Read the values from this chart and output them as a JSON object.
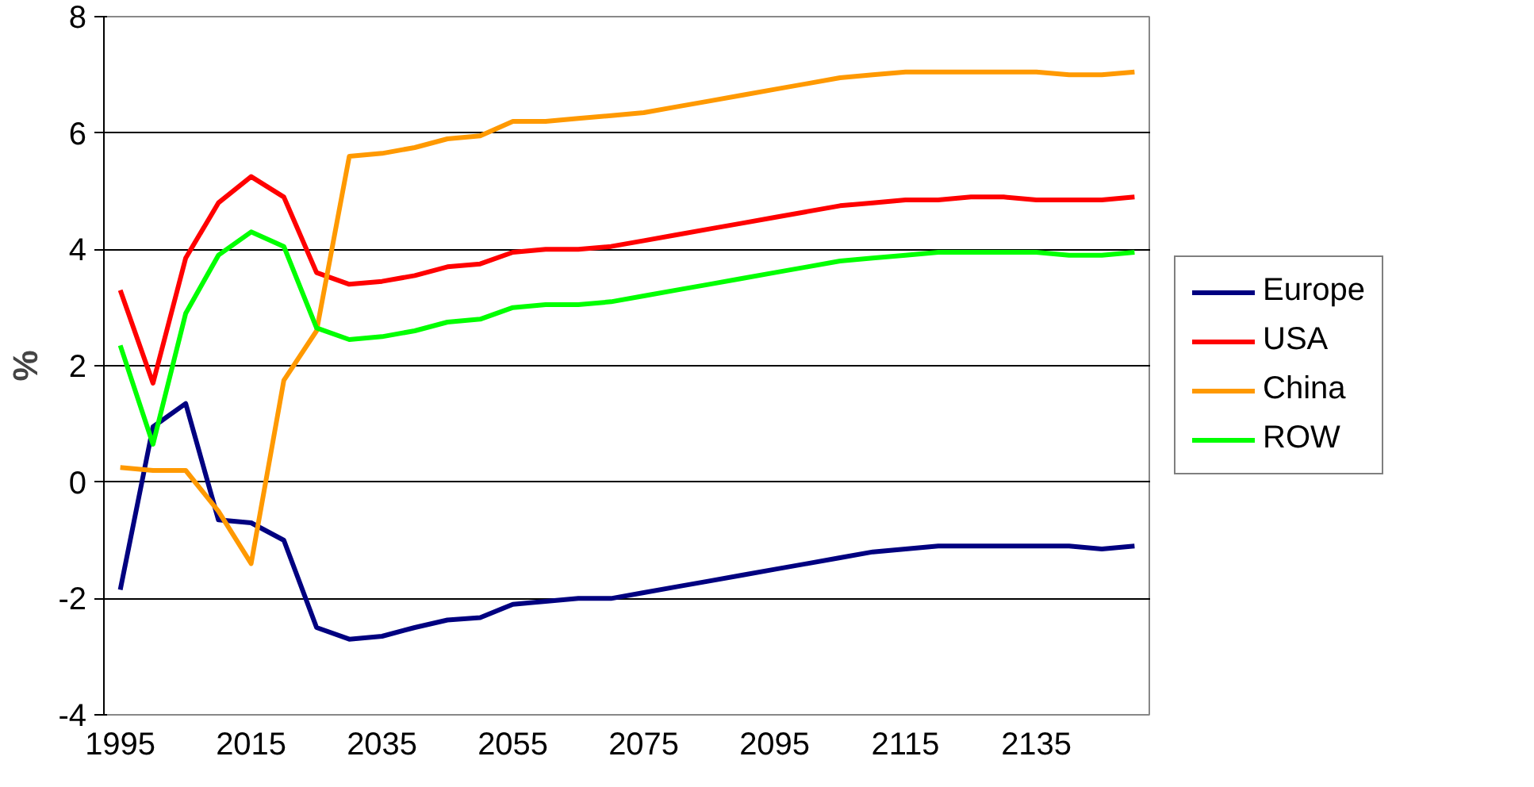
{
  "chart_data": {
    "type": "line",
    "ylabel": "%",
    "ylim": [
      -4,
      8
    ],
    "yticks": [
      -4,
      -2,
      0,
      2,
      4,
      6,
      8
    ],
    "grid": "y",
    "legend": "right",
    "categories": [
      "1995",
      null,
      null,
      null,
      "2015",
      null,
      null,
      null,
      "2035",
      null,
      null,
      null,
      "2055",
      null,
      null,
      null,
      "2075",
      null,
      null,
      null,
      "2095",
      null,
      null,
      null,
      "2115",
      null,
      null,
      null,
      "2135",
      null,
      null,
      null
    ],
    "series": [
      {
        "name": "Europe",
        "color": "#000080",
        "values": [
          -1.85,
          0.95,
          1.35,
          -0.65,
          -0.7,
          -1.0,
          -2.5,
          -2.7,
          -2.65,
          -2.5,
          -2.37,
          -2.33,
          -2.1,
          -2.05,
          -2.0,
          -2.0,
          -1.9,
          -1.8,
          -1.7,
          -1.6,
          -1.5,
          -1.4,
          -1.3,
          -1.2,
          -1.15,
          -1.1,
          -1.1,
          -1.1,
          -1.1,
          -1.1,
          -1.15,
          -1.1
        ]
      },
      {
        "name": "USA",
        "color": "#ff0000",
        "values": [
          3.3,
          1.7,
          3.85,
          4.8,
          5.25,
          4.9,
          3.6,
          3.4,
          3.45,
          3.55,
          3.7,
          3.75,
          3.95,
          4.0,
          4.0,
          4.05,
          4.15,
          4.25,
          4.35,
          4.45,
          4.55,
          4.65,
          4.75,
          4.8,
          4.85,
          4.85,
          4.9,
          4.9,
          4.85,
          4.85,
          4.85,
          4.9
        ]
      },
      {
        "name": "China",
        "color": "#ff9900",
        "values": [
          0.25,
          0.2,
          0.2,
          -0.5,
          -1.4,
          1.75,
          2.6,
          5.6,
          5.65,
          5.75,
          5.9,
          5.95,
          6.2,
          6.2,
          6.25,
          6.3,
          6.35,
          6.45,
          6.55,
          6.65,
          6.75,
          6.85,
          6.95,
          7.0,
          7.05,
          7.05,
          7.05,
          7.05,
          7.05,
          7.0,
          7.0,
          7.05
        ]
      },
      {
        "name": "ROW",
        "color": "#00ff00",
        "values": [
          2.35,
          0.65,
          2.9,
          3.9,
          4.3,
          4.05,
          2.65,
          2.45,
          2.5,
          2.6,
          2.75,
          2.8,
          3.0,
          3.05,
          3.05,
          3.1,
          3.2,
          3.3,
          3.4,
          3.5,
          3.6,
          3.7,
          3.8,
          3.85,
          3.9,
          3.95,
          3.95,
          3.95,
          3.95,
          3.9,
          3.9,
          3.95
        ]
      }
    ]
  }
}
